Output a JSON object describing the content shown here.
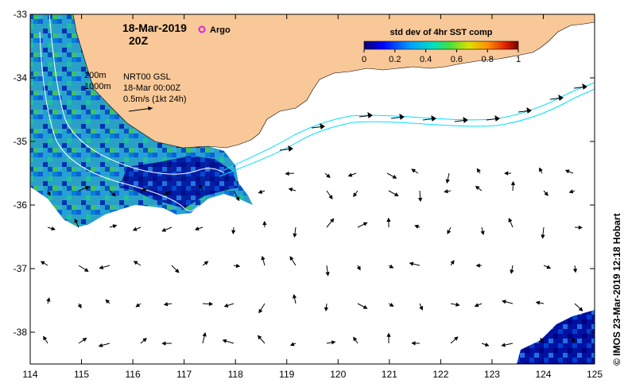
{
  "map": {
    "date": "18-Mar-2019",
    "time": "20Z",
    "legend_argo": "Argo",
    "legend_argo_color": "#e020e0",
    "contour_200": "200m",
    "contour_1000": "1000m",
    "current_source": "NRT00 GSL",
    "current_time": "18-Mar 00:00Z",
    "arrow_scale": "0.5m/s (1kt 24h)",
    "colorbar_title": "std dev of 4hr SST comp",
    "colorbar_ticks": [
      "0",
      "0.2",
      "0.4",
      "0.6",
      "0.8",
      "1"
    ],
    "credit": "© IMOS 23-Mar-2019 12:18 Hobart",
    "lon_ticks": [
      "114",
      "115",
      "116",
      "117",
      "118",
      "119",
      "120",
      "121",
      "122",
      "123",
      "124",
      "125"
    ],
    "lat_ticks": [
      "-33",
      "-34",
      "-35",
      "-36",
      "-37",
      "-38"
    ],
    "extent": {
      "lon": [
        114,
        125
      ],
      "lat": [
        -38.5,
        -33
      ]
    },
    "colors": {
      "land": "#f8c898",
      "contour": "#00e0ff",
      "shelf_contour": "#ffffff"
    }
  }
}
